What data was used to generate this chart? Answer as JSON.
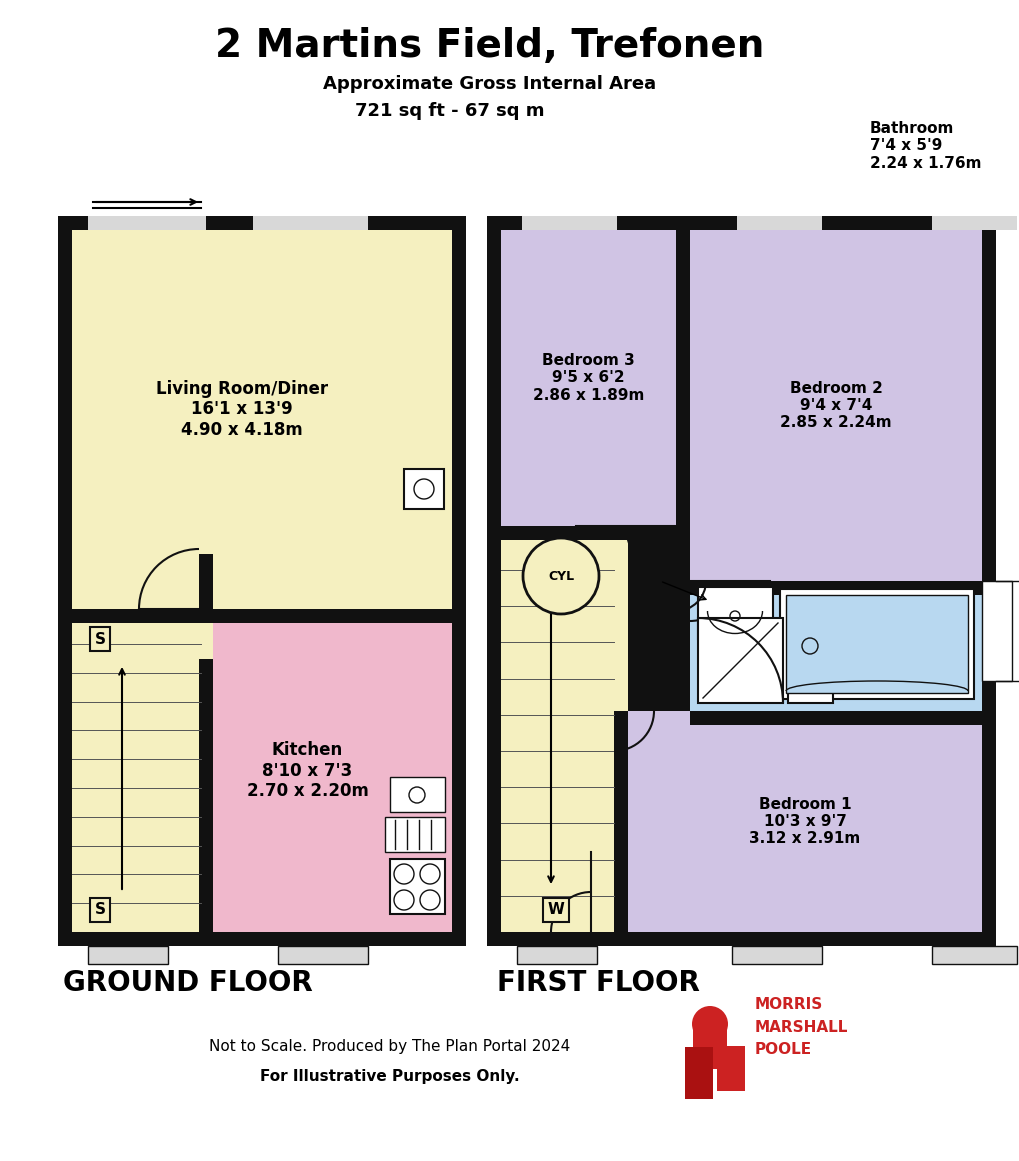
{
  "title": "2 Martins Field, Trefonen",
  "subtitle1": "Approximate Gross Internal Area",
  "subtitle2": "721 sq ft - 67 sq m",
  "bathroom_label": "Bathroom\n7'4 x 5'9\n2.24 x 1.76m",
  "ground_floor_label": "GROUND FLOOR",
  "first_floor_label": "FIRST FLOOR",
  "footer1": "Not to Scale. Produced by The Plan Portal 2024",
  "footer2": "For Illustrative Purposes Only.",
  "brand": "MORRIS\nMARSHALL\nPOOLE",
  "colors": {
    "wall": "#111111",
    "living_room": "#f5f0c0",
    "kitchen": "#f0b8cc",
    "bedroom": "#d0c4e4",
    "bathroom": "#b8d8f0",
    "landing": "#f5f0c0",
    "background": "#ffffff",
    "brand_red": "#cc2222",
    "window_fill": "#d8d8d8"
  },
  "rooms": {
    "living_room": {
      "label": "Living Room/Diner\n16'1 x 13'9\n4.90 x 4.18m"
    },
    "kitchen": {
      "label": "Kitchen\n8'10 x 7'3\n2.70 x 2.20m"
    },
    "bedroom1": {
      "label": "Bedroom 1\n10'3 x 9'7\n3.12 x 2.91m"
    },
    "bedroom2": {
      "label": "Bedroom 2\n9'4 x 7'4\n2.85 x 2.24m"
    },
    "bedroom3": {
      "label": "Bedroom 3\n9'5 x 6'2\n2.86 x 1.89m"
    }
  }
}
